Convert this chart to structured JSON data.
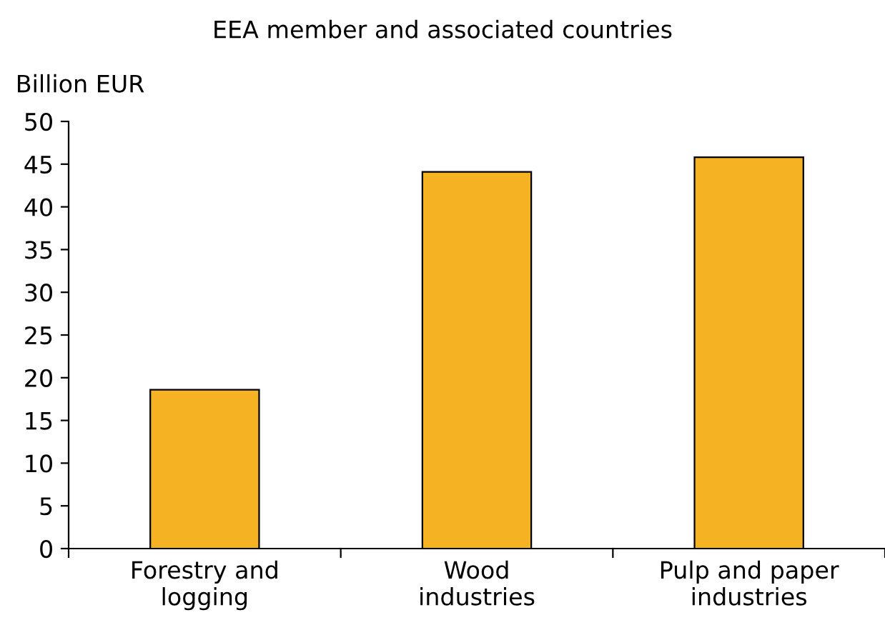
{
  "chart_data": {
    "type": "bar",
    "title": "EEA member and associated countries",
    "ylabel": "Billion EUR",
    "categories": [
      "Forestry and\nlogging",
      "Wood\nindustries",
      "Pulp and paper\nindustries"
    ],
    "values": [
      18.6,
      44.1,
      45.8
    ],
    "color": "#f5b324",
    "ylim": [
      0,
      50
    ],
    "yticks": [
      0,
      5,
      10,
      15,
      20,
      25,
      30,
      35,
      40,
      45,
      50
    ],
    "grid": false,
    "legend": false
  }
}
